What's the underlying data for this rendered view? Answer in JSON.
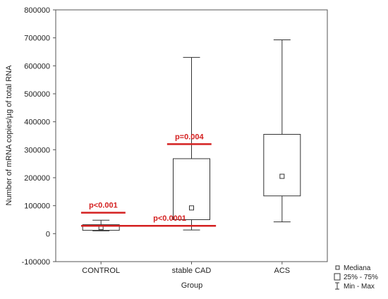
{
  "chart_data": {
    "type": "box",
    "xlabel": "Group",
    "ylabel": "Number of mRNA copies/µg of total RNA",
    "ylim": [
      -100000,
      800000
    ],
    "yticks": [
      -100000,
      0,
      100000,
      200000,
      300000,
      400000,
      500000,
      600000,
      700000,
      800000
    ],
    "ytick_labels": [
      "-100000",
      "0",
      "100000",
      "200000",
      "300000",
      "400000",
      "500000",
      "600000",
      "700000",
      "800000"
    ],
    "categories": [
      "CONTROL",
      "stable CAD",
      "ACS"
    ],
    "boxes": [
      {
        "category": "CONTROL",
        "min": 10000,
        "q1": 12000,
        "median": 22000,
        "q3": 32000,
        "max": 48000
      },
      {
        "category": "stable CAD",
        "min": 13000,
        "q1": 50000,
        "median": 92000,
        "q3": 268000,
        "max": 630000
      },
      {
        "category": "ACS",
        "min": 42000,
        "q1": 135000,
        "median": 205000,
        "q3": 355000,
        "max": 693000
      }
    ],
    "annotations": [
      {
        "text": "p<0.001",
        "line_from_category": 0.28,
        "line_to_category": 0.77,
        "line_y": 75000
      },
      {
        "text": "p=0.004",
        "line_from_category": 1.23,
        "line_to_category": 1.72,
        "line_y": 320000
      },
      {
        "text": "p<0.0001",
        "line_from_category": 0.28,
        "line_to_category": 1.77,
        "line_y": 28000
      }
    ],
    "annotation_color": "#d42020",
    "legend": {
      "position": "bottom-right",
      "items": [
        {
          "symbol": "square-point",
          "label": "Mediana"
        },
        {
          "symbol": "box",
          "label": "25% - 75%"
        },
        {
          "symbol": "whisker",
          "label": "Min - Max"
        }
      ]
    },
    "grid": false
  }
}
